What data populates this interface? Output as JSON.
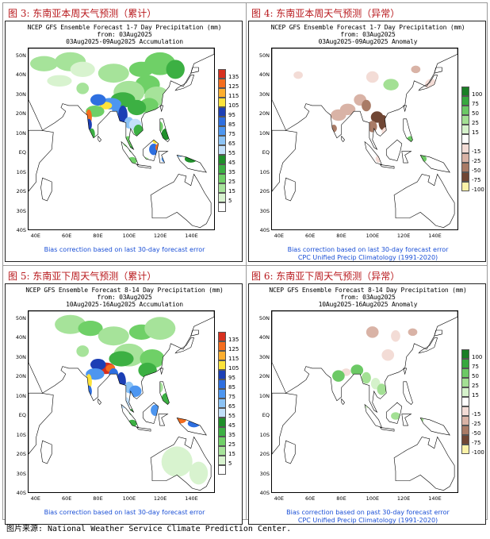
{
  "panels": [
    {
      "label": "图 3: 东南亚本周天气预测（累计）",
      "title1": "NCEP GFS Ensemble Forecast 1-7 Day Precipitation (mm)",
      "title2": "from: 03Aug2025",
      "title3": "03Aug2025-09Aug2025 Accumulation",
      "note1": "Bias correction based on last 30-day forecast error",
      "note2": ""
    },
    {
      "label": "图 4: 东南亚本周天气预测（异常）",
      "title1": "NCEP GFS Ensemble Forecast 1-7 Day Precipitation (mm)",
      "title2": "from: 03Aug2025",
      "title3": "03Aug2025-09Aug2025 Anomaly",
      "note1": "Bias correction based on last 30-day forecast error",
      "note2": "CPC Unified Precip Climatology (1991-2020)"
    },
    {
      "label": "图 5: 东南亚下周天气预测（累计）",
      "title1": "NCEP GFS Ensemble Forecast 8-14 Day Precipitation (mm)",
      "title2": "from: 03Aug2025",
      "title3": "10Aug2025-16Aug2025 Accumulation",
      "note1": "Bias correction based on last 30-day forecast error",
      "note2": ""
    },
    {
      "label": "图 6: 东南亚下周天气预测（异常）",
      "title1": "NCEP GFS Ensemble Forecast 8-14 Day Precipitation (mm)",
      "title2": "from: 03Aug2025",
      "title3": "10Aug2025-16Aug2025 Anomaly",
      "note1": "Bias correction based on past 30-day forecast error",
      "note2": "CPC Unified Precip Climatology (1991-2020)"
    }
  ],
  "latitudes": [
    "50N",
    "40N",
    "30N",
    "20N",
    "10N",
    "EQ",
    "10S",
    "20S",
    "30S",
    "40S"
  ],
  "longitudes": [
    "40E",
    "60E",
    "80E",
    "100E",
    "120E",
    "140E"
  ],
  "accum_legend": [
    {
      "label": "135",
      "color": "#d7301f"
    },
    {
      "label": "125",
      "color": "#f46d1e"
    },
    {
      "label": "115",
      "color": "#fdae2e"
    },
    {
      "label": "105",
      "color": "#fde33a"
    },
    {
      "label": "95",
      "color": "#1c3fb5"
    },
    {
      "label": "85",
      "color": "#2e6fe0"
    },
    {
      "label": "75",
      "color": "#4d96f0"
    },
    {
      "label": "65",
      "color": "#8cc3f5"
    },
    {
      "label": "55",
      "color": "#c3e0fa"
    },
    {
      "label": "45",
      "color": "#1f8f2a"
    },
    {
      "label": "35",
      "color": "#3cb043"
    },
    {
      "label": "25",
      "color": "#6fd067"
    },
    {
      "label": "15",
      "color": "#a6e39a"
    },
    {
      "label": "5",
      "color": "#d8f3cf"
    },
    {
      "label": "",
      "color": "#ffffff"
    }
  ],
  "anom_legend": [
    {
      "label": "100",
      "color": "#1a7f26"
    },
    {
      "label": "75",
      "color": "#37a83e"
    },
    {
      "label": "50",
      "color": "#6cc965"
    },
    {
      "label": "25",
      "color": "#a3e094"
    },
    {
      "label": "15",
      "color": "#d5f2cb"
    },
    {
      "label": "",
      "color": "#ffffff"
    },
    {
      "label": "-15",
      "color": "#f3dcd6"
    },
    {
      "label": "-25",
      "color": "#d9b3a6"
    },
    {
      "label": "-50",
      "color": "#a97b66"
    },
    {
      "label": "-75",
      "color": "#704634"
    },
    {
      "label": "-100",
      "color": "#fbf2a8"
    }
  ],
  "source": "图片来源: National Weather Service Climate Prediction Center."
}
